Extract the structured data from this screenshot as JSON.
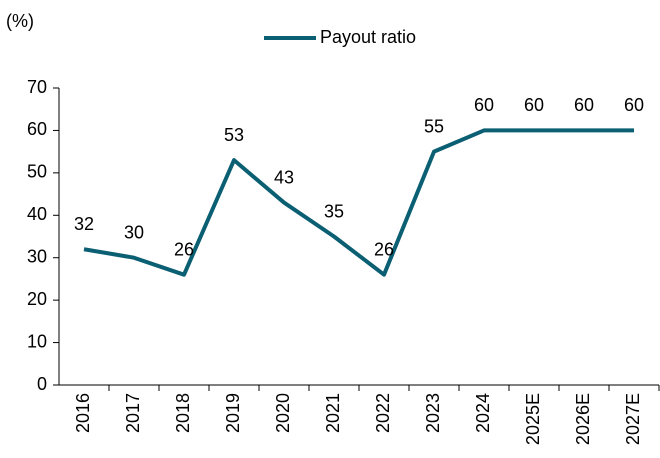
{
  "chart_data": {
    "type": "line",
    "y_unit_label": "(%)",
    "categories": [
      "2016",
      "2017",
      "2018",
      "2019",
      "2020",
      "2021",
      "2022",
      "2023",
      "2024",
      "2025E",
      "2026E",
      "2027E"
    ],
    "series": [
      {
        "name": "Payout ratio",
        "color": "#0b5f73",
        "values": [
          32,
          30,
          26,
          53,
          43,
          35,
          26,
          55,
          60,
          60,
          60,
          60
        ]
      }
    ],
    "ylim": [
      0,
      70
    ],
    "yticks": [
      0,
      10,
      20,
      30,
      40,
      50,
      60,
      70
    ],
    "grid": false,
    "legend": "top"
  }
}
